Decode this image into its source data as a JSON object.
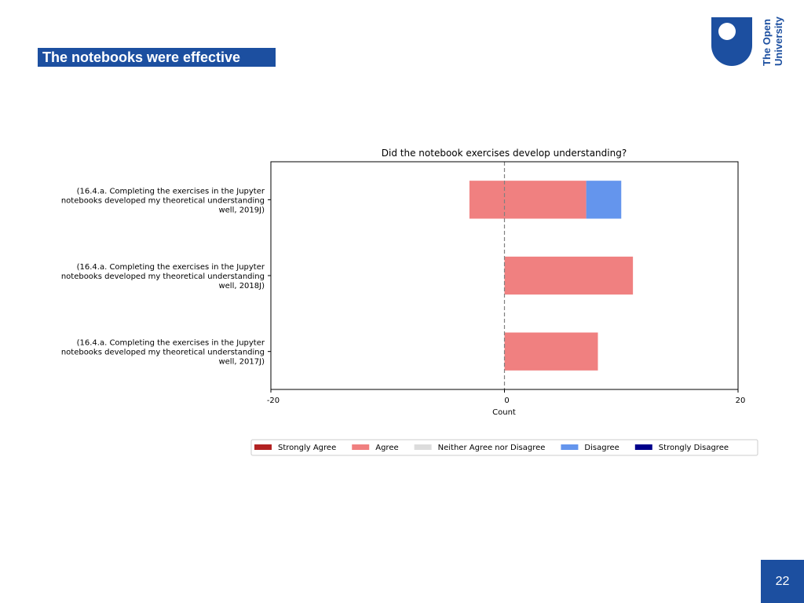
{
  "slide": {
    "title": "The notebooks were effective",
    "page_number": "22",
    "logo_line1": "The Open",
    "logo_line2": "University",
    "brand_color": "#1c4fa0"
  },
  "chart_data": {
    "type": "bar",
    "orientation": "horizontal",
    "stacked": true,
    "diverging": true,
    "title": "Did the notebook exercises develop understanding?",
    "xlabel": "Count",
    "ylabel": "",
    "xlim": [
      -20,
      20
    ],
    "xticks": [
      -20,
      0,
      20
    ],
    "reference_line": 0,
    "categories": [
      [
        "(16.4.a. Completing the exercises in the Jupyter",
        "notebooks developed my theoretical understanding",
        "well, 2019J)"
      ],
      [
        "(16.4.a. Completing the exercises in the Jupyter",
        "notebooks developed my theoretical understanding",
        "well, 2018J)"
      ],
      [
        "(16.4.a. Completing the exercises in the Jupyter",
        "notebooks developed my theoretical understanding",
        "well, 2017J)"
      ]
    ],
    "series": [
      {
        "name": "Strongly Agree",
        "color": "#b22222",
        "values": [
          0,
          0,
          0
        ]
      },
      {
        "name": "Agree",
        "color": "#f08080",
        "values": [
          10,
          11,
          8
        ]
      },
      {
        "name": "Neither Agree nor Disagree",
        "color": "#dcdcdc",
        "values": [
          0,
          0,
          0
        ]
      },
      {
        "name": "Disagree",
        "color": "#6495ed",
        "values": [
          3,
          0,
          0
        ]
      },
      {
        "name": "Strongly Disagree",
        "color": "#00008b",
        "values": [
          0,
          0,
          0
        ]
      }
    ],
    "bar_segments": [
      [
        {
          "series": "Agree",
          "start": -3,
          "end": 7
        },
        {
          "series": "Disagree",
          "start": 7,
          "end": 10
        }
      ],
      [
        {
          "series": "Agree",
          "start": 0,
          "end": 11
        }
      ],
      [
        {
          "series": "Agree",
          "start": 0,
          "end": 8
        }
      ]
    ],
    "legend_position": "bottom-center"
  }
}
